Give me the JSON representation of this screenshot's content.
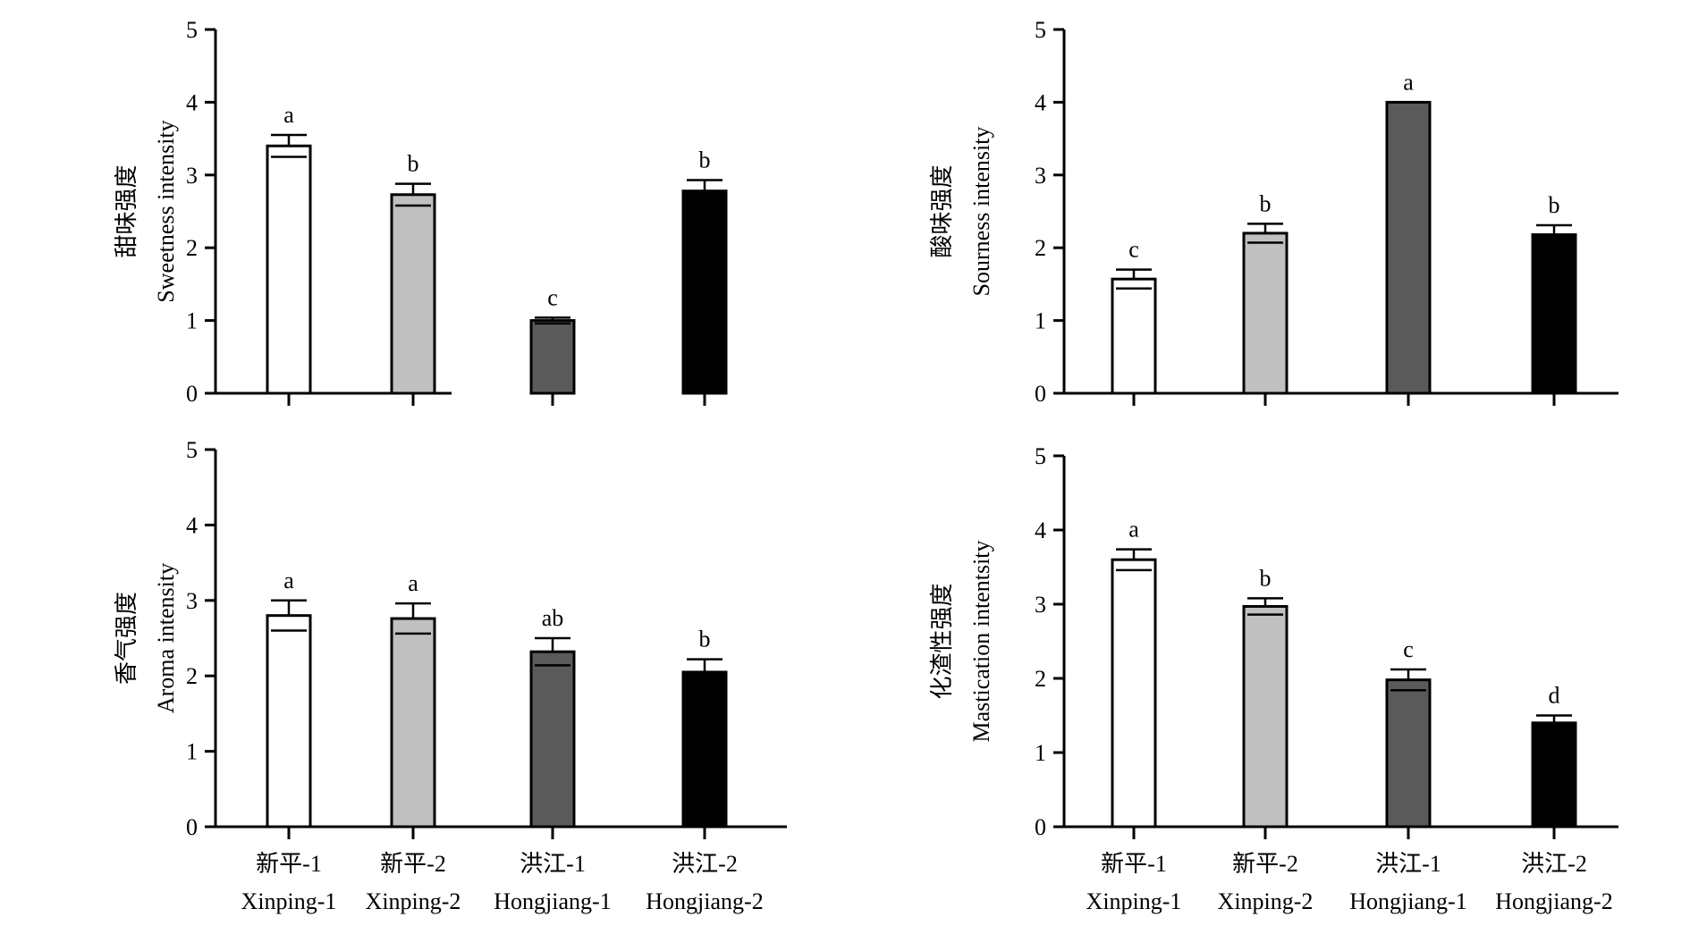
{
  "categories_zh": [
    "新平-1",
    "新平-2",
    "洪江-1",
    "洪江-2"
  ],
  "categories_en": [
    "Xinping-1",
    "Xinping-2",
    "Hongjiang-1",
    "Hongjiang-2"
  ],
  "bar_colors": [
    "#ffffff",
    "#c0c0c0",
    "#5a5a5a",
    "#000000"
  ],
  "chart_data": [
    {
      "type": "bar",
      "ylabel_zh": "甜味强度",
      "ylabel_en": "Sweetness intensity",
      "ylim": [
        0,
        5
      ],
      "yticks": [
        "0",
        "1",
        "2",
        "3",
        "4",
        "5"
      ],
      "values": [
        3.4,
        2.73,
        1.0,
        2.78
      ],
      "errors": [
        0.15,
        0.15,
        0.04,
        0.15
      ],
      "letters": [
        "a",
        "b",
        "c",
        "b"
      ],
      "grid": false
    },
    {
      "type": "bar",
      "ylabel_zh": "酸味强度",
      "ylabel_en": "Sourness intensity",
      "ylim": [
        0,
        5
      ],
      "yticks": [
        "0",
        "1",
        "2",
        "3",
        "4",
        "5"
      ],
      "values": [
        1.57,
        2.2,
        4.0,
        2.18
      ],
      "errors": [
        0.13,
        0.13,
        0.0,
        0.13
      ],
      "letters": [
        "c",
        "b",
        "a",
        "b"
      ],
      "grid": false
    },
    {
      "type": "bar",
      "ylabel_zh": "香气强度",
      "ylabel_en": "Aroma intensity",
      "ylim": [
        0,
        5
      ],
      "yticks": [
        "0",
        "1",
        "2",
        "3",
        "4",
        "5"
      ],
      "values": [
        2.8,
        2.76,
        2.32,
        2.05
      ],
      "errors": [
        0.2,
        0.2,
        0.18,
        0.17
      ],
      "letters": [
        "a",
        "a",
        "ab",
        "b"
      ],
      "grid": false
    },
    {
      "type": "bar",
      "ylabel_zh": "化渣性强度",
      "ylabel_en": "Mastication intentsity",
      "ylim": [
        0,
        5
      ],
      "yticks": [
        "0",
        "1",
        "2",
        "3",
        "4",
        "5"
      ],
      "values": [
        3.6,
        2.97,
        1.98,
        1.4
      ],
      "errors": [
        0.14,
        0.11,
        0.14,
        0.1
      ],
      "letters": [
        "a",
        "b",
        "c",
        "d"
      ],
      "grid": false
    }
  ]
}
